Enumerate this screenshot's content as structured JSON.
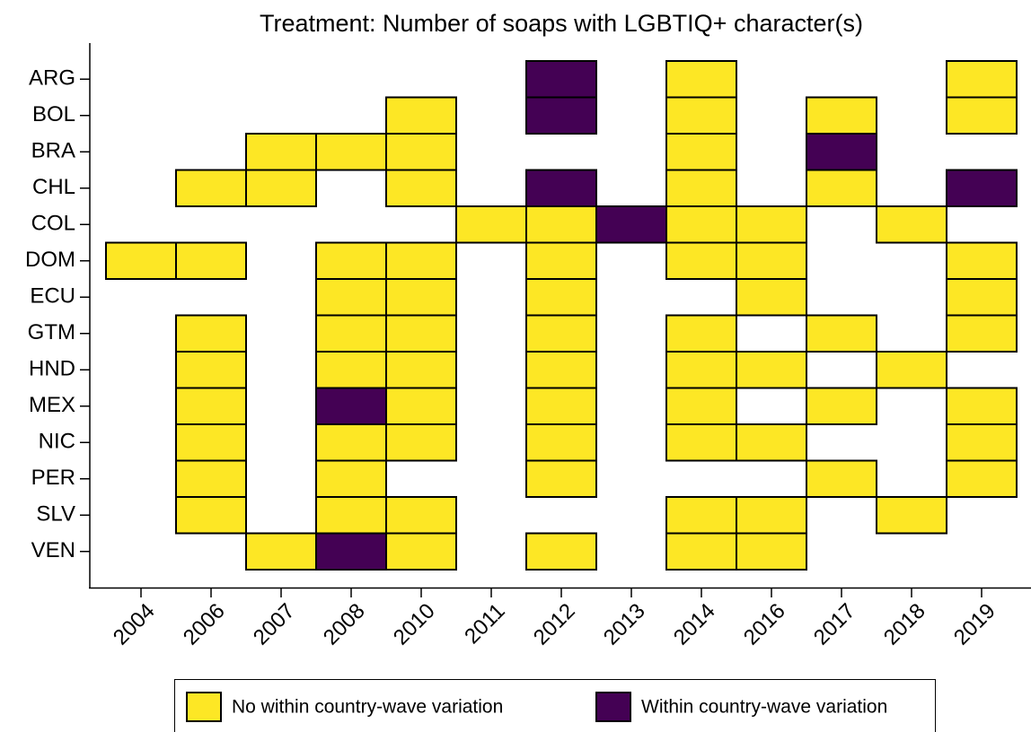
{
  "chart_data": {
    "type": "heatmap",
    "title": "Treatment: Number of soaps with LGBTIQ+ character(s)",
    "x": [
      "2004",
      "2006",
      "2007",
      "2008",
      "2010",
      "2011",
      "2012",
      "2013",
      "2014",
      "2016",
      "2017",
      "2018",
      "2019"
    ],
    "y": [
      "ARG",
      "BOL",
      "BRA",
      "CHL",
      "COL",
      "DOM",
      "ECU",
      "GTM",
      "HND",
      "MEX",
      "NIC",
      "PER",
      "SLV",
      "VEN"
    ],
    "legend": [
      {
        "name": "No within country-wave variation",
        "color": "#fde725"
      },
      {
        "name": "Within country-wave variation",
        "color": "#440154"
      }
    ],
    "values": [
      [
        null,
        null,
        null,
        null,
        null,
        null,
        1,
        null,
        0,
        null,
        null,
        null,
        0
      ],
      [
        null,
        null,
        null,
        null,
        0,
        null,
        1,
        null,
        0,
        null,
        0,
        null,
        0
      ],
      [
        null,
        null,
        0,
        0,
        0,
        null,
        null,
        null,
        0,
        null,
        1,
        null,
        null
      ],
      [
        null,
        0,
        0,
        null,
        0,
        null,
        1,
        null,
        0,
        null,
        0,
        null,
        1
      ],
      [
        null,
        null,
        null,
        null,
        null,
        0,
        0,
        1,
        0,
        0,
        null,
        0,
        null
      ],
      [
        0,
        0,
        null,
        0,
        0,
        null,
        0,
        null,
        0,
        0,
        null,
        null,
        0
      ],
      [
        null,
        null,
        null,
        0,
        0,
        null,
        0,
        null,
        null,
        0,
        null,
        null,
        0
      ],
      [
        null,
        0,
        null,
        0,
        0,
        null,
        0,
        null,
        0,
        null,
        0,
        null,
        0
      ],
      [
        null,
        0,
        null,
        0,
        0,
        null,
        0,
        null,
        0,
        0,
        null,
        0,
        null
      ],
      [
        null,
        0,
        null,
        1,
        0,
        null,
        0,
        null,
        0,
        null,
        0,
        null,
        0
      ],
      [
        null,
        0,
        null,
        0,
        0,
        null,
        0,
        null,
        0,
        0,
        null,
        null,
        0
      ],
      [
        null,
        0,
        null,
        0,
        null,
        null,
        0,
        null,
        null,
        null,
        0,
        null,
        0
      ],
      [
        null,
        0,
        null,
        0,
        0,
        null,
        null,
        null,
        0,
        0,
        null,
        0,
        null
      ],
      [
        null,
        null,
        0,
        1,
        0,
        null,
        0,
        null,
        0,
        0,
        null,
        null,
        null
      ]
    ]
  }
}
